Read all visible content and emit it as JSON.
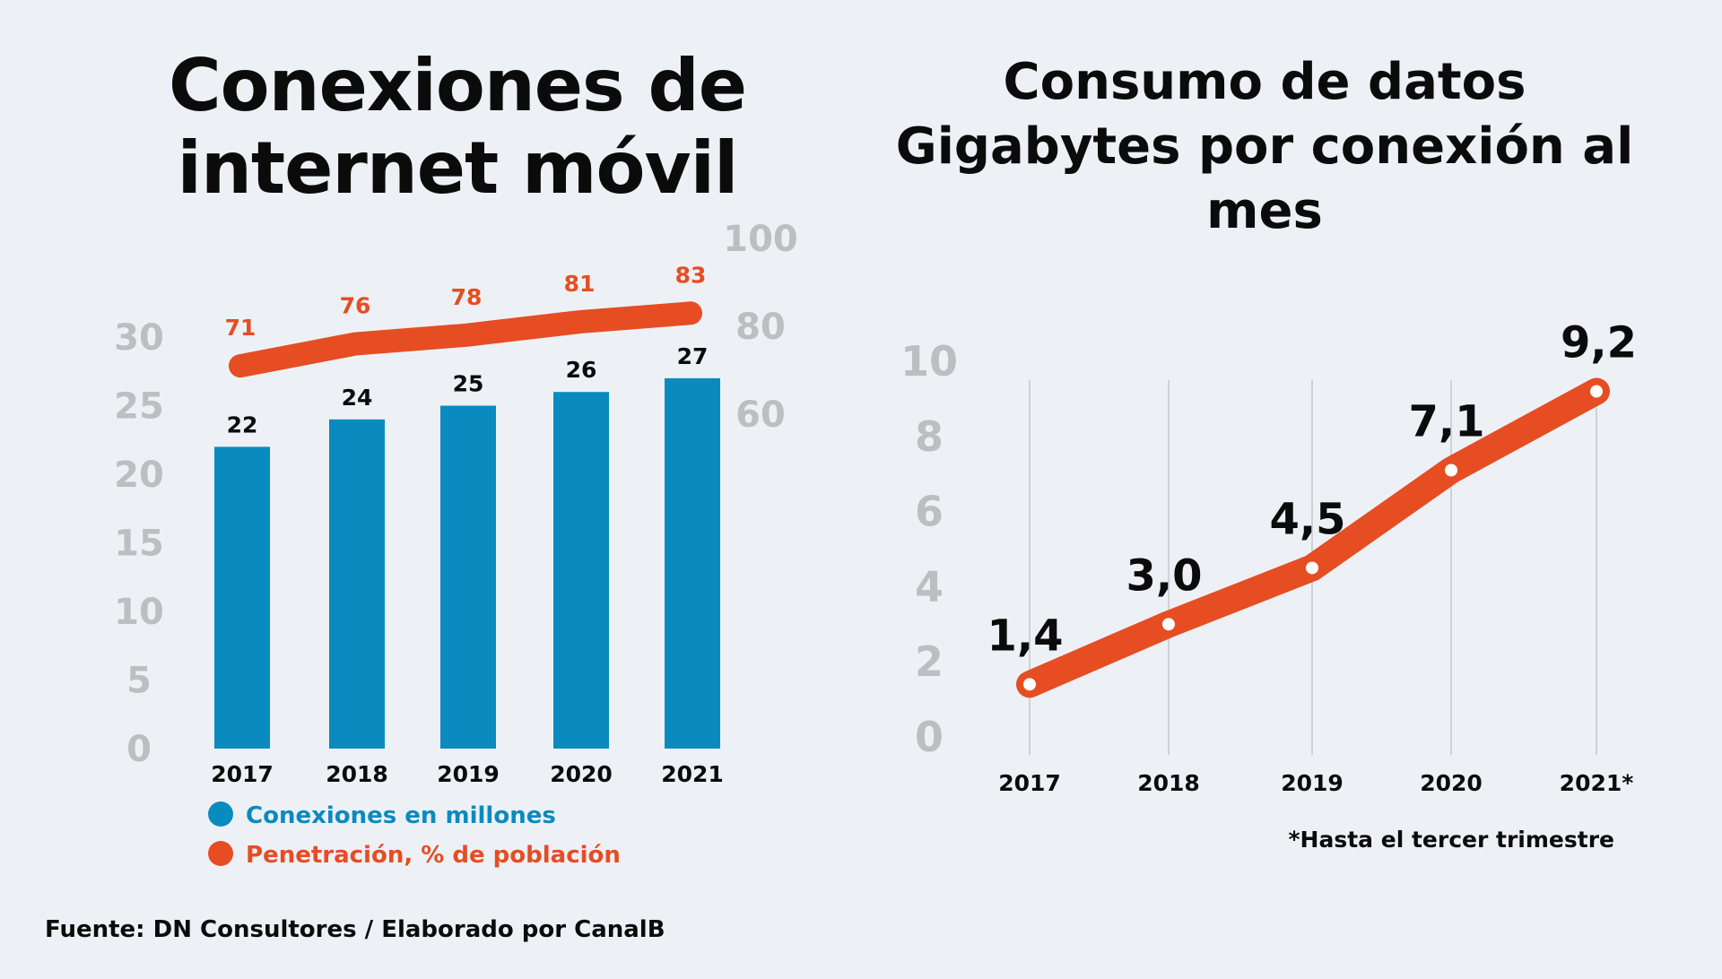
{
  "colors": {
    "background": "#edf1f6",
    "bars": "#0a8bbf",
    "line": "#e64d23",
    "axis_ticks": "#bcbec0",
    "text": "#0b0b0b"
  },
  "source": "Fuente: DN Consultores / Elaborado por CanalB",
  "chart_data": [
    {
      "type": "bar",
      "title": "Conexiones de internet móvil",
      "categories": [
        "2017",
        "2018",
        "2019",
        "2020",
        "2021"
      ],
      "ylim": [
        0,
        30
      ],
      "y_ticks": [
        "0",
        "5",
        "10",
        "15",
        "20",
        "25",
        "30"
      ],
      "y2lim": [
        60,
        100
      ],
      "y2_ticks": [
        "60",
        "80",
        "100"
      ],
      "legend_position": "bottom-left",
      "series": [
        {
          "name": "Conexiones en millones",
          "type": "bar",
          "axis": "left",
          "values": [
            22,
            24,
            25,
            26,
            27
          ],
          "labels": [
            "22",
            "24",
            "25",
            "26",
            "27"
          ]
        },
        {
          "name": "Penetración, % de población",
          "type": "line",
          "axis": "right",
          "values": [
            71,
            76,
            78,
            81,
            83
          ],
          "labels": [
            "71",
            "76",
            "78",
            "81",
            "83"
          ]
        }
      ]
    },
    {
      "type": "line",
      "title": "Consumo de datos Gigabytes por conexión al mes",
      "categories": [
        "2017",
        "2018",
        "2019",
        "2020",
        "2021*"
      ],
      "ylim": [
        0,
        10
      ],
      "y_ticks": [
        "0",
        "2",
        "4",
        "6",
        "8",
        "10"
      ],
      "grid": "vertical",
      "series": [
        {
          "values": [
            1.4,
            3.0,
            4.5,
            7.1,
            9.2
          ],
          "labels": [
            "1,4",
            "3,0",
            "4,5",
            "7,1",
            "9,2"
          ]
        }
      ],
      "footnote": "*Hasta el tercer trimestre"
    }
  ]
}
